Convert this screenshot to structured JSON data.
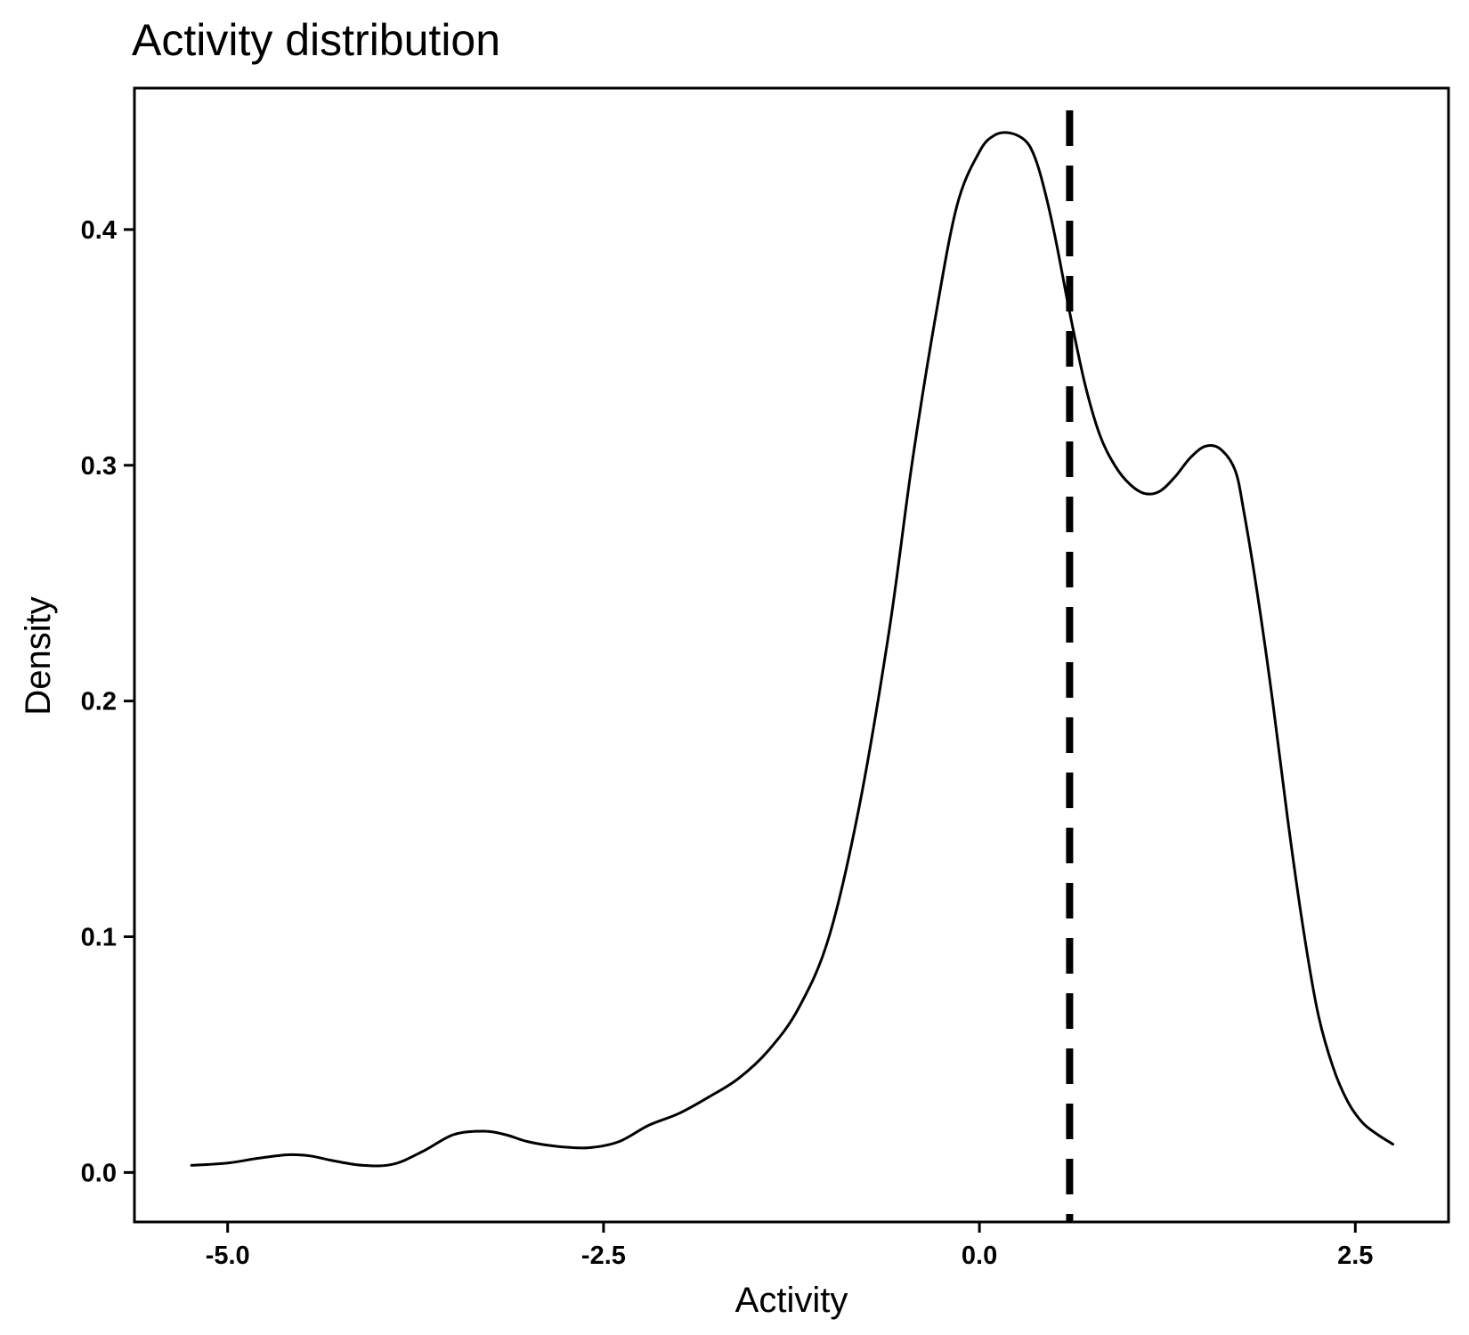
{
  "chart_data": {
    "type": "line",
    "title": "Activity distribution",
    "xlabel": "Activity",
    "ylabel": "Density",
    "xlim": [
      -5.62,
      3.12
    ],
    "ylim": [
      -0.021,
      0.46
    ],
    "x_ticks": [
      -5.0,
      -2.5,
      0.0,
      2.5
    ],
    "x_tick_labels": [
      "-5.0",
      "-2.5",
      "0.0",
      "2.5"
    ],
    "y_ticks": [
      0.0,
      0.1,
      0.2,
      0.3,
      0.4
    ],
    "y_tick_labels": [
      "0.0",
      "0.1",
      "0.2",
      "0.3",
      "0.4"
    ],
    "grid": false,
    "line_color": "#000000",
    "series": [
      {
        "x": [
          -5.24,
          -5.0,
          -4.8,
          -4.6,
          -4.45,
          -4.3,
          -4.1,
          -3.9,
          -3.7,
          -3.5,
          -3.3,
          -3.15,
          -3.0,
          -2.8,
          -2.6,
          -2.4,
          -2.2,
          -2.0,
          -1.8,
          -1.6,
          -1.4,
          -1.2,
          -1.0,
          -0.8,
          -0.6,
          -0.45,
          -0.3,
          -0.15,
          0.0,
          0.1,
          0.2,
          0.3,
          0.36,
          0.42,
          0.5,
          0.6,
          0.7,
          0.8,
          0.9,
          1.0,
          1.1,
          1.2,
          1.3,
          1.4,
          1.5,
          1.6,
          1.7,
          1.76,
          1.85,
          1.95,
          2.05,
          2.15,
          2.25,
          2.35,
          2.45,
          2.55,
          2.65,
          2.75
        ],
        "y": [
          0.003,
          0.004,
          0.006,
          0.0075,
          0.007,
          0.005,
          0.003,
          0.0035,
          0.009,
          0.016,
          0.0175,
          0.016,
          0.013,
          0.011,
          0.0105,
          0.013,
          0.02,
          0.025,
          0.032,
          0.04,
          0.052,
          0.07,
          0.1,
          0.155,
          0.23,
          0.3,
          0.36,
          0.41,
          0.433,
          0.44,
          0.441,
          0.438,
          0.432,
          0.42,
          0.398,
          0.365,
          0.335,
          0.313,
          0.3,
          0.292,
          0.288,
          0.289,
          0.295,
          0.303,
          0.308,
          0.307,
          0.298,
          0.28,
          0.245,
          0.2,
          0.15,
          0.105,
          0.068,
          0.045,
          0.03,
          0.021,
          0.016,
          0.012
        ]
      }
    ],
    "reference_line": {
      "x": 0.6,
      "style": "dashed"
    }
  }
}
